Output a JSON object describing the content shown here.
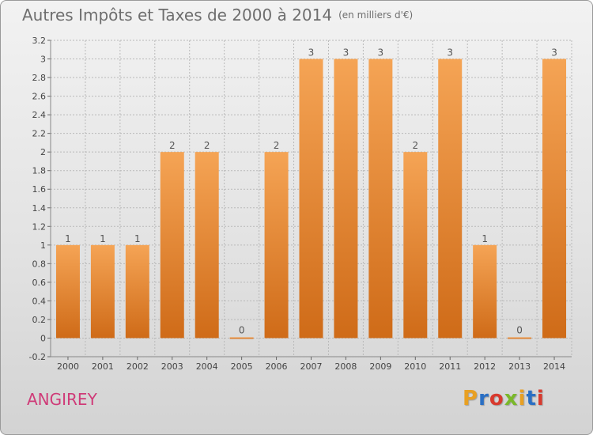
{
  "title": "Autres Impôts et Taxes de 2000 à 2014",
  "subtitle": "(en milliers d'€)",
  "location": "ANGIREY",
  "brand": {
    "text": "Proxiti",
    "letter_colors": [
      "#e8a023",
      "#2a6fc4",
      "#d83a2e",
      "#7ab82a",
      "#e8a023",
      "#2a6fc4",
      "#d83a2e"
    ]
  },
  "colors": {
    "bar_top": "#f5a455",
    "bar_bottom": "#cf6b18",
    "grid": "#b9b9b9",
    "axis_text": "#444444",
    "title": "#6e6e6e",
    "location": "#cf3b78"
  },
  "chart_data": {
    "type": "bar",
    "categories": [
      "2000",
      "2001",
      "2002",
      "2003",
      "2004",
      "2005",
      "2006",
      "2007",
      "2008",
      "2009",
      "2010",
      "2011",
      "2012",
      "2013",
      "2014"
    ],
    "values": [
      1,
      1,
      1,
      2,
      2,
      0,
      2,
      3,
      3,
      3,
      2,
      3,
      1,
      0,
      3
    ],
    "data_labels": [
      "1",
      "1",
      "1",
      "2",
      "2",
      "0",
      "2",
      "3",
      "3",
      "3",
      "2",
      "3",
      "1",
      "0",
      "3"
    ],
    "ylim": [
      -0.2,
      3.2
    ],
    "yticks": [
      "-0.2",
      "0",
      "0.2",
      "0.4",
      "0.6",
      "0.8",
      "1",
      "1.2",
      "1.4",
      "1.6",
      "1.8",
      "2",
      "2.2",
      "2.4",
      "2.6",
      "2.8",
      "3",
      "3.2"
    ],
    "ytick_values": [
      -0.2,
      0,
      0.2,
      0.4,
      0.6,
      0.8,
      1,
      1.2,
      1.4,
      1.6,
      1.8,
      2,
      2.2,
      2.4,
      2.6,
      2.8,
      3,
      3.2
    ],
    "grid": true,
    "xlabel": "",
    "ylabel": ""
  }
}
